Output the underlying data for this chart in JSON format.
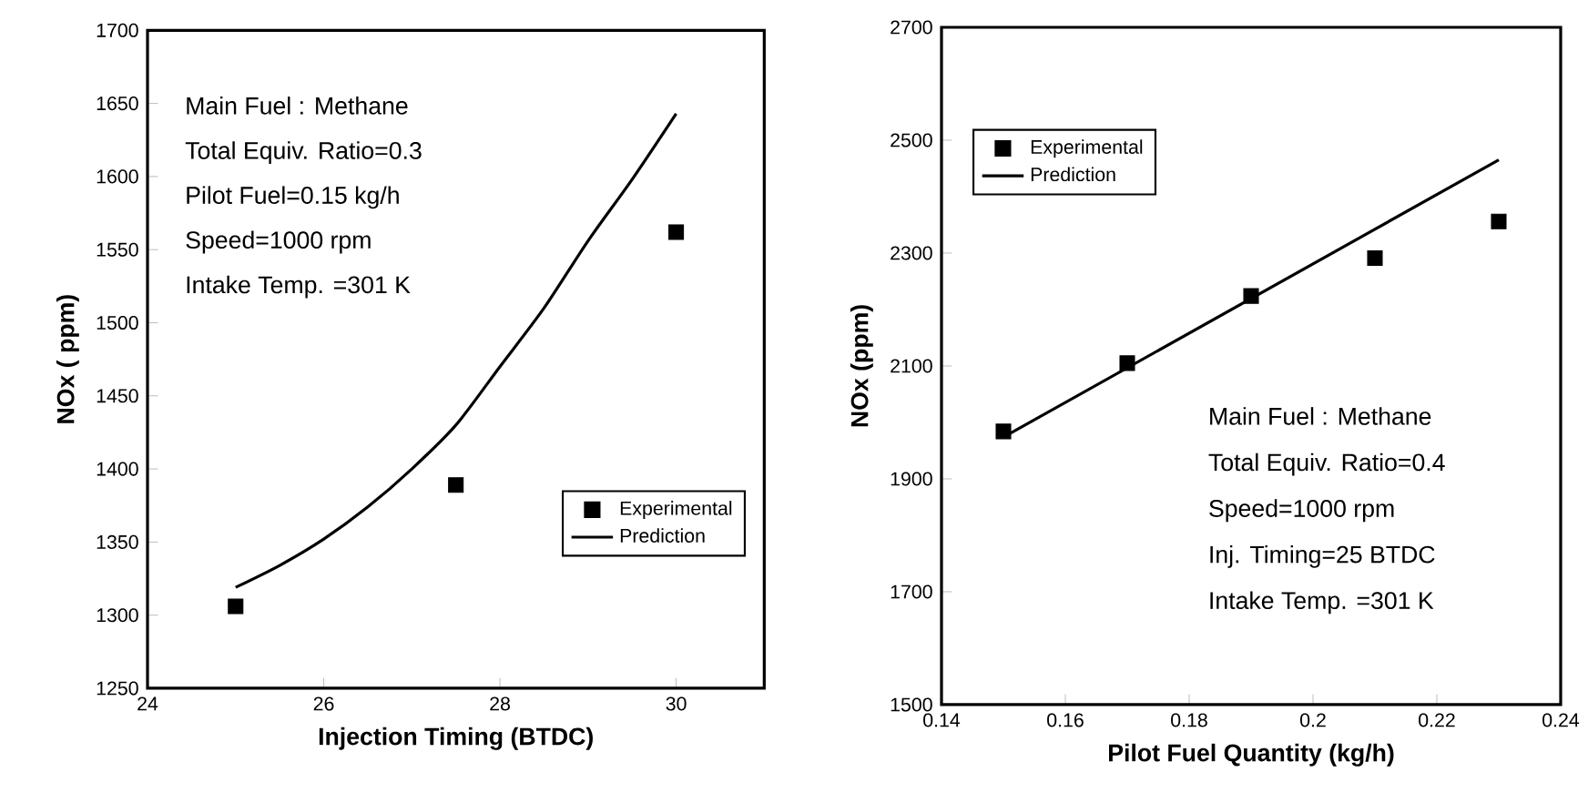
{
  "chart_data": [
    {
      "type": "scatter",
      "xlabel": "Injection Timing  (BTDC)",
      "ylabel": "NOx ( ppm)",
      "xlim": [
        24,
        31
      ],
      "xticks": [
        24,
        26,
        28,
        30
      ],
      "ylim": [
        1250,
        1700
      ],
      "yticks": [
        1250,
        1300,
        1350,
        1400,
        1450,
        1500,
        1550,
        1600,
        1650,
        1700
      ],
      "legend": "bottom right",
      "grid": false,
      "annotations": [
        "Main Fuel : Methane",
        "Total Equiv. Ratio=0.3",
        "Pilot Fuel=0.15 kg/h",
        "Speed=1000 rpm",
        "Intake Temp. =301 K"
      ],
      "series": [
        {
          "name": "Experimental",
          "marker": "square",
          "color": "#000000",
          "x": [
            25,
            27.5,
            30
          ],
          "values": [
            1306,
            1389,
            1562
          ]
        },
        {
          "name": "Prediction",
          "type": "line",
          "marker": "none",
          "line_style": "solid",
          "color": "#000000",
          "x": [
            25,
            25.5,
            26,
            26.5,
            27,
            27.5,
            28,
            28.5,
            29,
            29.5,
            30
          ],
          "values": [
            1319,
            1334,
            1352,
            1374,
            1400,
            1430,
            1470,
            1510,
            1556,
            1598,
            1643
          ]
        }
      ]
    },
    {
      "type": "scatter",
      "xlabel": "Pilot Fuel Quantity (kg/h)",
      "ylabel": "NOx (ppm)",
      "xlim": [
        0.14,
        0.24
      ],
      "xticks": [
        0.14,
        0.16,
        0.18,
        0.2,
        0.22,
        0.24
      ],
      "ylim": [
        1500,
        2700
      ],
      "yticks": [
        1500,
        1700,
        1900,
        2100,
        2300,
        2500,
        2700
      ],
      "legend": "top left",
      "grid": false,
      "annotations": [
        "Main Fuel : Methane",
        "Total Equiv. Ratio=0.4",
        "Speed=1000 rpm",
        "Inj. Timing=25 BTDC",
        "Intake Temp. =301 K"
      ],
      "series": [
        {
          "name": "Experimental",
          "marker": "square",
          "color": "#000000",
          "x": [
            0.15,
            0.17,
            0.19,
            0.21,
            0.23
          ],
          "values": [
            1984,
            2105,
            2224,
            2291,
            2356
          ]
        },
        {
          "name": "Prediction",
          "type": "line",
          "marker": "none",
          "line_style": "solid",
          "color": "#000000",
          "x": [
            0.15,
            0.23
          ],
          "values": [
            1974,
            2465
          ]
        }
      ]
    }
  ]
}
